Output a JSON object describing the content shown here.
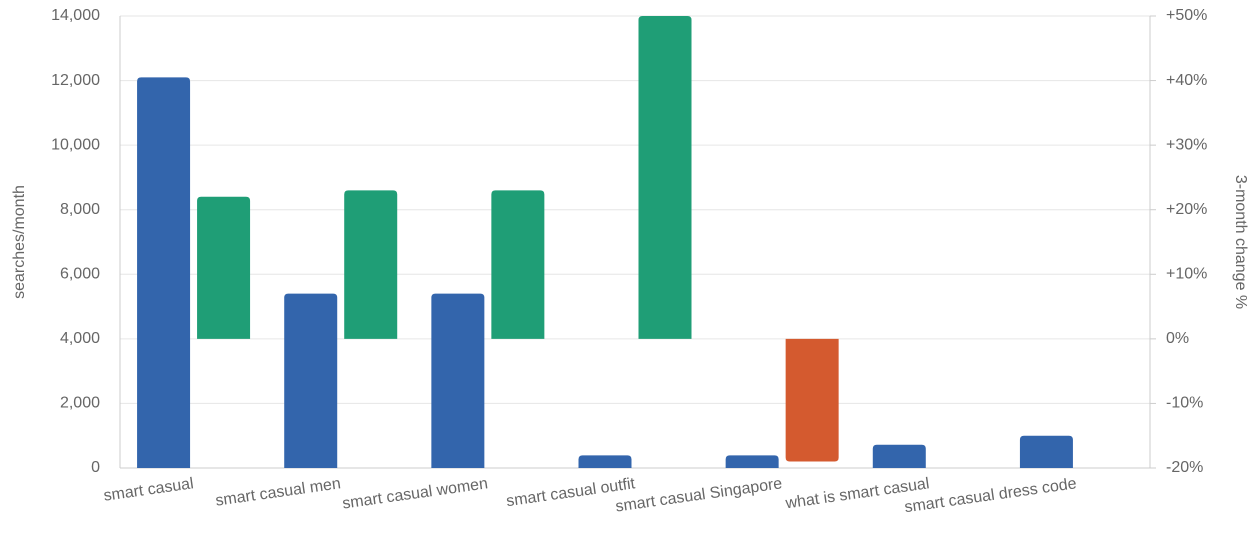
{
  "chart_data": {
    "type": "bar",
    "categories": [
      "smart casual",
      "smart casual men",
      "smart casual women",
      "smart casual outfit",
      "smart casual Singapore",
      "what is smart casual",
      "smart casual dress code"
    ],
    "y_label": "searches/month",
    "y2_label": "3-month change %",
    "series": [
      {
        "name": "searches/month",
        "color": "#3365ac",
        "values": [
          12100,
          5400,
          5400,
          390,
          390,
          720,
          1000
        ]
      },
      {
        "name": "3-month change %",
        "axis": "y2",
        "color": "#1f9e76",
        "negative_color": "#d45a2f",
        "values": [
          22,
          23,
          23,
          50,
          -19,
          null,
          null
        ]
      }
    ],
    "ylim": [
      0,
      14000
    ],
    "yticks": [
      0,
      {
        "value": 2000,
        "label": "2,000"
      },
      {
        "value": 4000,
        "label": "4,000"
      },
      {
        "value": 6000,
        "label": "6,000"
      },
      {
        "value": 8000,
        "label": "8,000"
      },
      {
        "value": 10000,
        "label": "10,000"
      },
      {
        "value": 12000,
        "label": "12,000"
      },
      {
        "value": 14000,
        "label": "14,000"
      }
    ],
    "y2lim": [
      -20,
      50
    ],
    "y2ticks": [
      {
        "value": -20,
        "label": "-20%"
      },
      {
        "value": -10,
        "label": "-10%"
      },
      {
        "value": 0,
        "label": "0%"
      },
      {
        "value": 10,
        "label": "+10%"
      },
      {
        "value": 20,
        "label": "+20%"
      },
      {
        "value": 30,
        "label": "+30%"
      },
      {
        "value": 40,
        "label": "+40%"
      },
      {
        "value": 50,
        "label": "+50%"
      }
    ],
    "grid": true
  }
}
